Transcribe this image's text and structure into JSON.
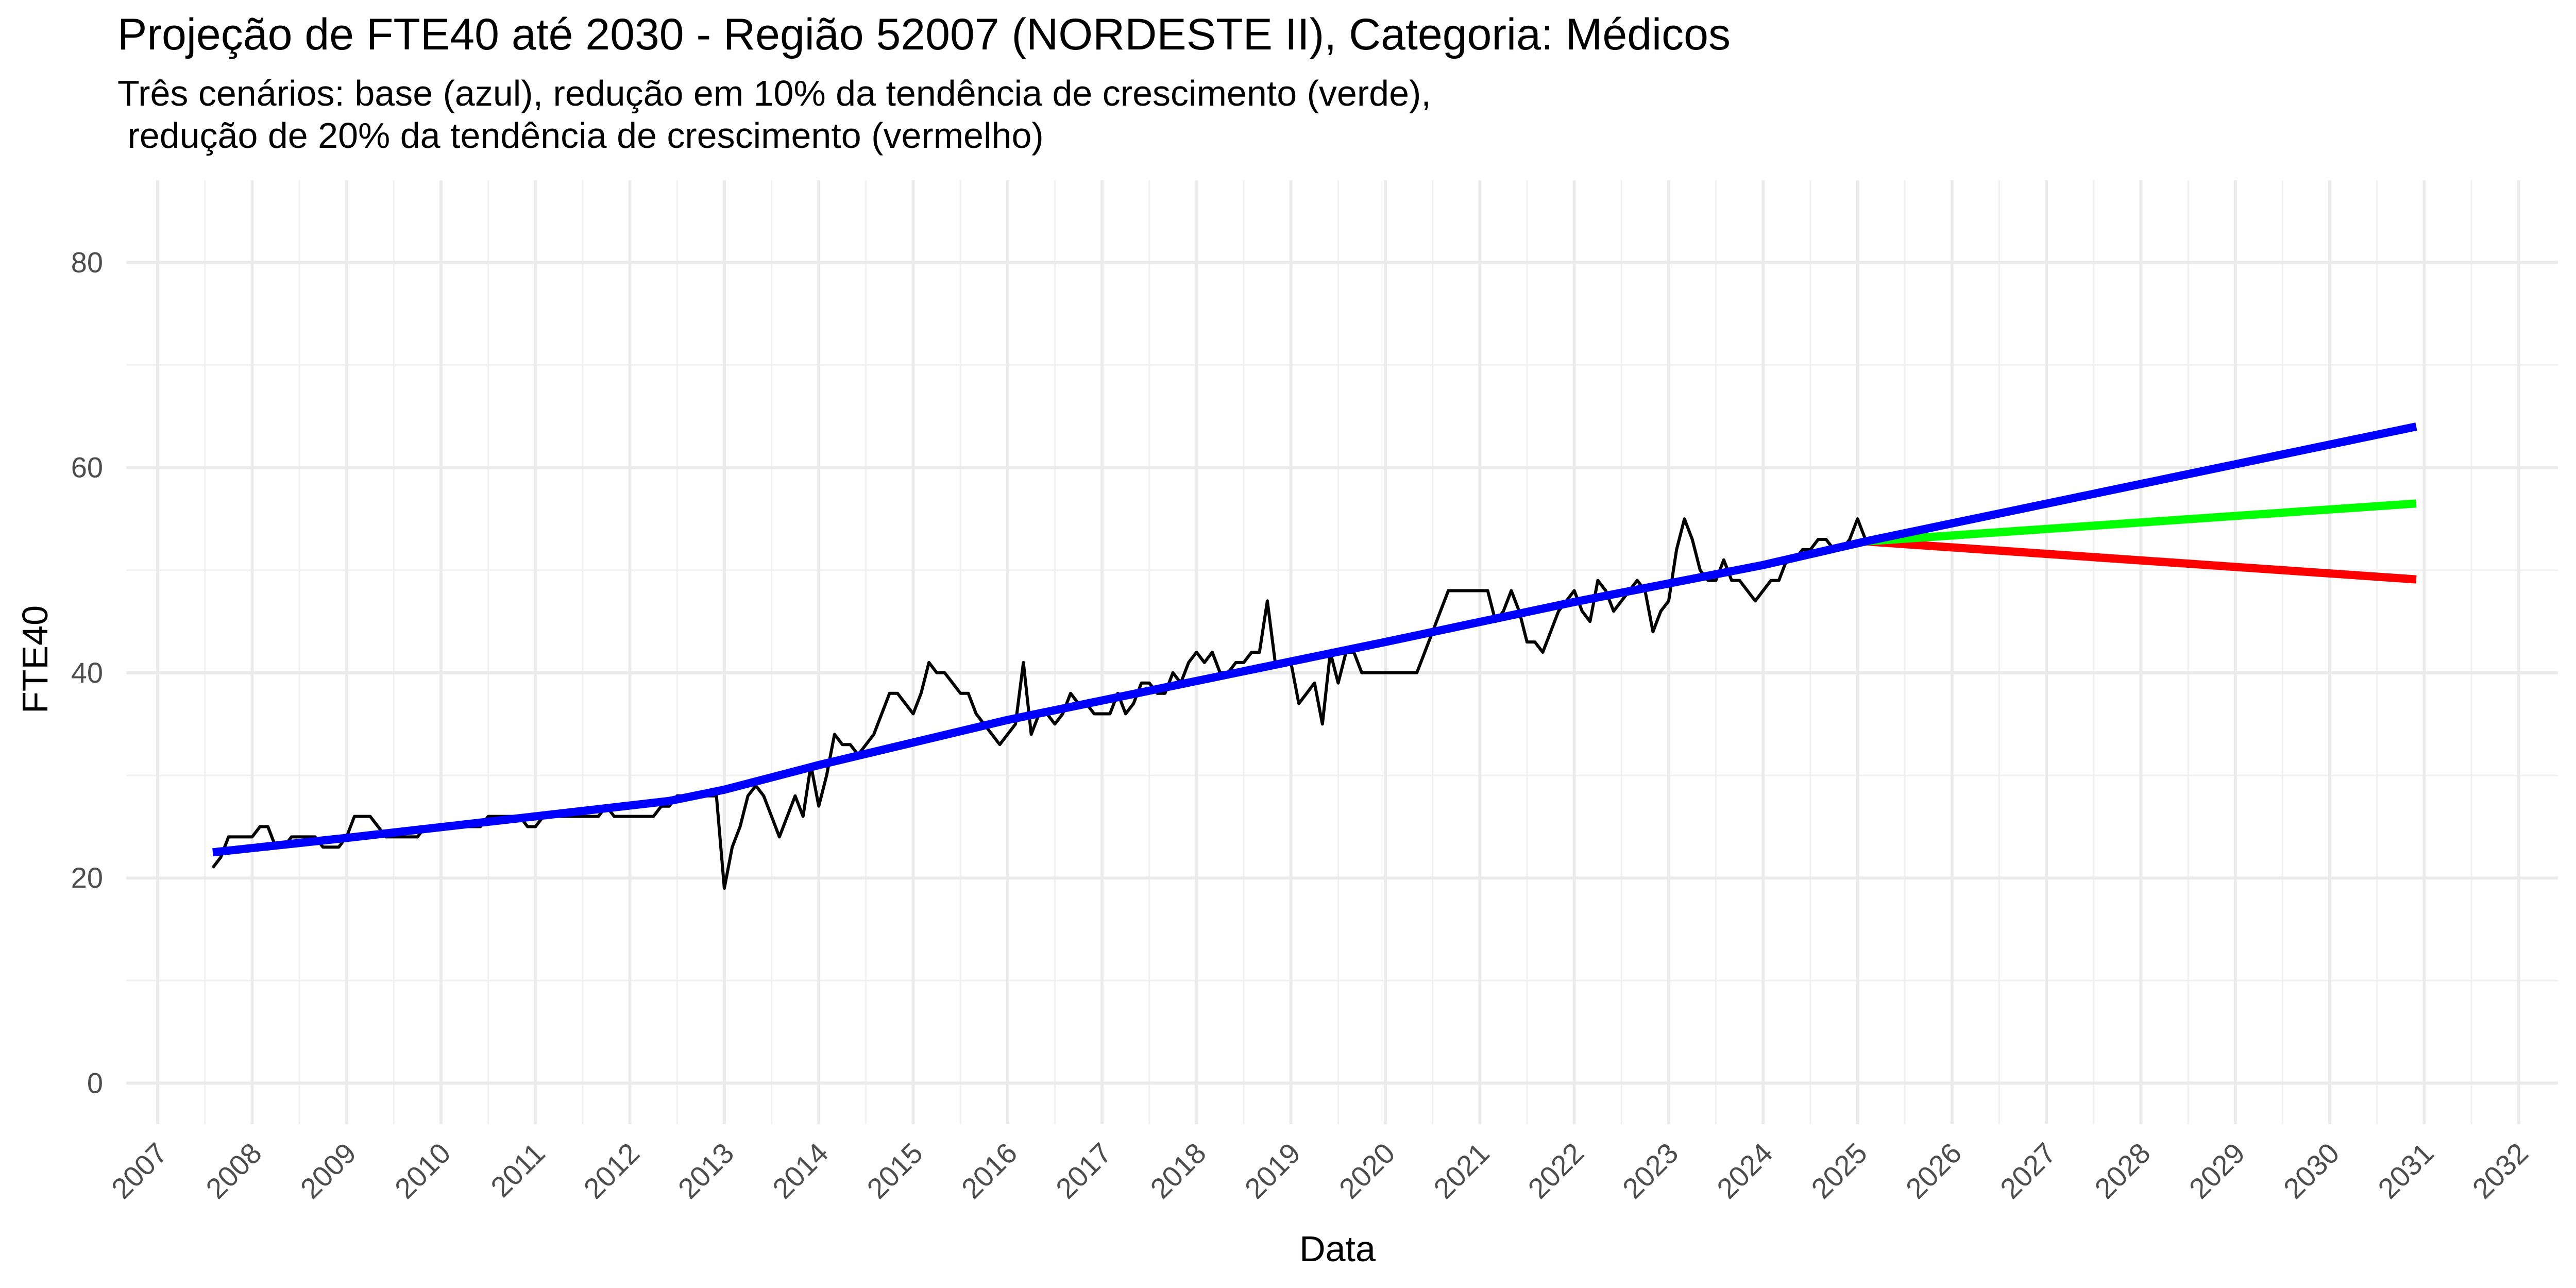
{
  "chart_data": {
    "type": "line",
    "title": "Projeção de FTE40 até 2030 - Região 52007 (NORDESTE II), Categoria: Médicos",
    "subtitle": "Três cenários: base (azul), redução em 10% da tendência de crescimento (verde),\n redução de 20% da tendência de crescimento (vermelho)",
    "xlabel": "Data",
    "ylabel": "FTE40",
    "ylim": [
      -4,
      88
    ],
    "xlim": [
      "2006-09-01",
      "2032-06-01"
    ],
    "y_ticks": [
      0,
      20,
      40,
      60,
      80
    ],
    "x_ticks": [
      "2007",
      "2008",
      "2009",
      "2010",
      "2011",
      "2012",
      "2013",
      "2014",
      "2015",
      "2016",
      "2017",
      "2018",
      "2019",
      "2020",
      "2021",
      "2022",
      "2023",
      "2024",
      "2025",
      "2026",
      "2027",
      "2028",
      "2029",
      "2030",
      "2031",
      "2032"
    ],
    "grid": true,
    "legend": "none",
    "colors": {
      "observed": "#000000",
      "base": "#0000ff",
      "reduction_10": "#00ff00",
      "reduction_20": "#ff0000"
    },
    "series": [
      {
        "key": "observed",
        "points": [
          [
            "2007-08-01",
            21
          ],
          [
            "2007-09-01",
            22
          ],
          [
            "2007-10-01",
            24
          ],
          [
            "2007-11-01",
            24
          ],
          [
            "2007-12-01",
            24
          ],
          [
            "2008-01-01",
            24
          ],
          [
            "2008-02-01",
            25
          ],
          [
            "2008-03-01",
            25
          ],
          [
            "2008-04-01",
            23
          ],
          [
            "2008-05-01",
            23
          ],
          [
            "2008-06-01",
            24
          ],
          [
            "2008-07-01",
            24
          ],
          [
            "2008-08-01",
            24
          ],
          [
            "2008-09-01",
            24
          ],
          [
            "2008-10-01",
            23
          ],
          [
            "2008-11-01",
            23
          ],
          [
            "2008-12-01",
            23
          ],
          [
            "2009-01-01",
            24
          ],
          [
            "2009-02-01",
            26
          ],
          [
            "2009-03-01",
            26
          ],
          [
            "2009-04-01",
            26
          ],
          [
            "2009-05-01",
            25
          ],
          [
            "2009-06-01",
            24
          ],
          [
            "2009-07-01",
            24
          ],
          [
            "2009-08-01",
            24
          ],
          [
            "2009-09-01",
            24
          ],
          [
            "2009-10-01",
            24
          ],
          [
            "2009-11-01",
            25
          ],
          [
            "2009-12-01",
            25
          ],
          [
            "2010-01-01",
            25
          ],
          [
            "2010-02-01",
            25
          ],
          [
            "2010-03-01",
            25
          ],
          [
            "2010-04-01",
            25
          ],
          [
            "2010-05-01",
            25
          ],
          [
            "2010-06-01",
            25
          ],
          [
            "2010-07-01",
            26
          ],
          [
            "2010-08-01",
            26
          ],
          [
            "2010-09-01",
            26
          ],
          [
            "2010-10-01",
            26
          ],
          [
            "2010-11-01",
            26
          ],
          [
            "2010-12-01",
            25
          ],
          [
            "2011-01-01",
            25
          ],
          [
            "2011-02-01",
            26
          ],
          [
            "2011-03-01",
            26
          ],
          [
            "2011-04-01",
            26
          ],
          [
            "2011-05-01",
            26
          ],
          [
            "2011-06-01",
            26
          ],
          [
            "2011-07-01",
            26
          ],
          [
            "2011-08-01",
            26
          ],
          [
            "2011-09-01",
            26
          ],
          [
            "2011-10-01",
            27
          ],
          [
            "2011-11-01",
            26
          ],
          [
            "2011-12-01",
            26
          ],
          [
            "2012-01-01",
            26
          ],
          [
            "2012-02-01",
            26
          ],
          [
            "2012-03-01",
            26
          ],
          [
            "2012-04-01",
            26
          ],
          [
            "2012-05-01",
            27
          ],
          [
            "2012-06-01",
            27
          ],
          [
            "2012-07-01",
            28
          ],
          [
            "2012-08-01",
            28
          ],
          [
            "2012-09-01",
            28
          ],
          [
            "2012-10-01",
            28
          ],
          [
            "2012-11-01",
            28
          ],
          [
            "2012-12-01",
            28
          ],
          [
            "2013-01-01",
            19
          ],
          [
            "2013-02-01",
            23
          ],
          [
            "2013-03-01",
            25
          ],
          [
            "2013-04-01",
            28
          ],
          [
            "2013-05-01",
            29
          ],
          [
            "2013-06-01",
            28
          ],
          [
            "2013-07-01",
            26
          ],
          [
            "2013-08-01",
            24
          ],
          [
            "2013-09-01",
            26
          ],
          [
            "2013-10-01",
            28
          ],
          [
            "2013-11-01",
            26
          ],
          [
            "2013-12-01",
            31
          ],
          [
            "2014-01-01",
            27
          ],
          [
            "2014-02-01",
            30
          ],
          [
            "2014-03-01",
            34
          ],
          [
            "2014-04-01",
            33
          ],
          [
            "2014-05-01",
            33
          ],
          [
            "2014-06-01",
            32
          ],
          [
            "2014-07-01",
            33
          ],
          [
            "2014-08-01",
            34
          ],
          [
            "2014-09-01",
            36
          ],
          [
            "2014-10-01",
            38
          ],
          [
            "2014-11-01",
            38
          ],
          [
            "2014-12-01",
            37
          ],
          [
            "2015-01-01",
            36
          ],
          [
            "2015-02-01",
            38
          ],
          [
            "2015-03-01",
            41
          ],
          [
            "2015-04-01",
            40
          ],
          [
            "2015-05-01",
            40
          ],
          [
            "2015-06-01",
            39
          ],
          [
            "2015-07-01",
            38
          ],
          [
            "2015-08-01",
            38
          ],
          [
            "2015-09-01",
            36
          ],
          [
            "2015-10-01",
            35
          ],
          [
            "2015-11-01",
            34
          ],
          [
            "2015-12-01",
            33
          ],
          [
            "2016-01-01",
            34
          ],
          [
            "2016-02-01",
            35
          ],
          [
            "2016-03-01",
            41
          ],
          [
            "2016-04-01",
            34
          ],
          [
            "2016-05-01",
            36
          ],
          [
            "2016-06-01",
            36
          ],
          [
            "2016-07-01",
            35
          ],
          [
            "2016-08-01",
            36
          ],
          [
            "2016-09-01",
            38
          ],
          [
            "2016-10-01",
            37
          ],
          [
            "2016-11-01",
            37
          ],
          [
            "2016-12-01",
            36
          ],
          [
            "2017-01-01",
            36
          ],
          [
            "2017-02-01",
            36
          ],
          [
            "2017-03-01",
            38
          ],
          [
            "2017-04-01",
            36
          ],
          [
            "2017-05-01",
            37
          ],
          [
            "2017-06-01",
            39
          ],
          [
            "2017-07-01",
            39
          ],
          [
            "2017-08-01",
            38
          ],
          [
            "2017-09-01",
            38
          ],
          [
            "2017-10-01",
            40
          ],
          [
            "2017-11-01",
            39
          ],
          [
            "2017-12-01",
            41
          ],
          [
            "2018-01-01",
            42
          ],
          [
            "2018-02-01",
            41
          ],
          [
            "2018-03-01",
            42
          ],
          [
            "2018-04-01",
            40
          ],
          [
            "2018-05-01",
            40
          ],
          [
            "2018-06-01",
            41
          ],
          [
            "2018-07-01",
            41
          ],
          [
            "2018-08-01",
            42
          ],
          [
            "2018-09-01",
            42
          ],
          [
            "2018-10-01",
            47
          ],
          [
            "2018-11-01",
            41
          ],
          [
            "2018-12-01",
            41
          ],
          [
            "2019-01-01",
            41
          ],
          [
            "2019-02-01",
            37
          ],
          [
            "2019-03-01",
            38
          ],
          [
            "2019-04-01",
            39
          ],
          [
            "2019-05-01",
            35
          ],
          [
            "2019-06-01",
            42
          ],
          [
            "2019-07-01",
            39
          ],
          [
            "2019-08-01",
            42
          ],
          [
            "2019-09-01",
            42
          ],
          [
            "2019-10-01",
            40
          ],
          [
            "2019-11-01",
            40
          ],
          [
            "2019-12-01",
            40
          ],
          [
            "2020-01-01",
            40
          ],
          [
            "2020-02-01",
            40
          ],
          [
            "2020-03-01",
            40
          ],
          [
            "2020-04-01",
            40
          ],
          [
            "2020-05-01",
            40
          ],
          [
            "2020-06-01",
            42
          ],
          [
            "2020-07-01",
            44
          ],
          [
            "2020-08-01",
            46
          ],
          [
            "2020-09-01",
            48
          ],
          [
            "2020-10-01",
            48
          ],
          [
            "2020-11-01",
            48
          ],
          [
            "2020-12-01",
            48
          ],
          [
            "2021-01-01",
            48
          ],
          [
            "2021-02-01",
            48
          ],
          [
            "2021-03-01",
            45
          ],
          [
            "2021-04-01",
            46
          ],
          [
            "2021-05-01",
            48
          ],
          [
            "2021-06-01",
            46
          ],
          [
            "2021-07-01",
            43
          ],
          [
            "2021-08-01",
            43
          ],
          [
            "2021-09-01",
            42
          ],
          [
            "2021-10-01",
            44
          ],
          [
            "2021-11-01",
            46
          ],
          [
            "2021-12-01",
            47
          ],
          [
            "2022-01-01",
            48
          ],
          [
            "2022-02-01",
            46
          ],
          [
            "2022-03-01",
            45
          ],
          [
            "2022-04-01",
            49
          ],
          [
            "2022-05-01",
            48
          ],
          [
            "2022-06-01",
            46
          ],
          [
            "2022-07-01",
            47
          ],
          [
            "2022-08-01",
            48
          ],
          [
            "2022-09-01",
            49
          ],
          [
            "2022-10-01",
            48
          ],
          [
            "2022-11-01",
            44
          ],
          [
            "2022-12-01",
            46
          ],
          [
            "2023-01-01",
            47
          ],
          [
            "2023-02-01",
            52
          ],
          [
            "2023-03-01",
            55
          ],
          [
            "2023-04-01",
            53
          ],
          [
            "2023-05-01",
            50
          ],
          [
            "2023-06-01",
            49
          ],
          [
            "2023-07-01",
            49
          ],
          [
            "2023-08-01",
            51
          ],
          [
            "2023-09-01",
            49
          ],
          [
            "2023-10-01",
            49
          ],
          [
            "2023-11-01",
            48
          ],
          [
            "2023-12-01",
            47
          ],
          [
            "2024-01-01",
            48
          ],
          [
            "2024-02-01",
            49
          ],
          [
            "2024-03-01",
            49
          ],
          [
            "2024-04-01",
            51
          ],
          [
            "2024-05-01",
            51
          ],
          [
            "2024-06-01",
            52
          ],
          [
            "2024-07-01",
            52
          ],
          [
            "2024-08-01",
            53
          ],
          [
            "2024-09-01",
            53
          ],
          [
            "2024-10-01",
            52
          ],
          [
            "2024-11-01",
            52
          ],
          [
            "2024-12-01",
            53
          ],
          [
            "2025-01-01",
            55
          ],
          [
            "2025-02-01",
            53
          ]
        ]
      },
      {
        "key": "base",
        "points": [
          [
            "2007-08-01",
            22.5
          ],
          [
            "2009-01-01",
            23.9
          ],
          [
            "2011-01-01",
            26.0
          ],
          [
            "2012-06-01",
            27.5
          ],
          [
            "2013-01-01",
            28.6
          ],
          [
            "2014-01-01",
            31.0
          ],
          [
            "2015-01-01",
            33.2
          ],
          [
            "2016-01-01",
            35.4
          ],
          [
            "2018-01-01",
            39.2
          ],
          [
            "2020-01-01",
            43.0
          ],
          [
            "2022-01-01",
            46.9
          ],
          [
            "2024-01-01",
            50.5
          ],
          [
            "2025-02-01",
            52.8
          ],
          [
            "2030-12-01",
            64.0
          ]
        ]
      },
      {
        "key": "reduction_10",
        "points": [
          [
            "2025-02-01",
            52.8
          ],
          [
            "2030-12-01",
            56.5
          ]
        ]
      },
      {
        "key": "reduction_20",
        "points": [
          [
            "2025-02-01",
            52.8
          ],
          [
            "2030-12-01",
            49.1
          ]
        ]
      }
    ]
  }
}
